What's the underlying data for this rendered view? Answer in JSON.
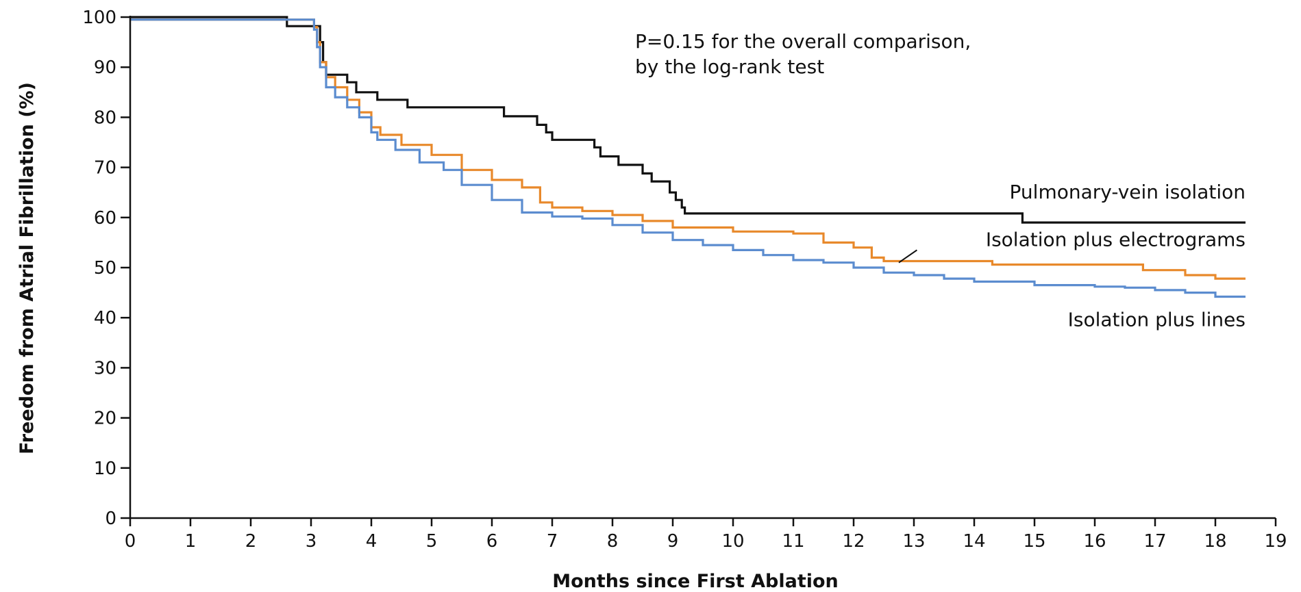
{
  "chart_data": {
    "type": "line",
    "xlabel": "Months since First Ablation",
    "ylabel": "Freedom from Atrial Fibrillation (%)",
    "xlim": [
      0,
      19
    ],
    "ylim": [
      0,
      100
    ],
    "xticks": [
      0,
      1,
      2,
      3,
      4,
      5,
      6,
      7,
      8,
      9,
      10,
      11,
      12,
      13,
      14,
      15,
      16,
      17,
      18,
      19
    ],
    "yticks": [
      0,
      10,
      20,
      30,
      40,
      50,
      60,
      70,
      80,
      90,
      100
    ],
    "grid": false,
    "annotation": {
      "line1": "P=0.15 for the overall comparison,",
      "line2": "by the log-rank test"
    },
    "series": [
      {
        "name": "Pulmonary-vein isolation",
        "color": "#111111",
        "step": true,
        "points": [
          [
            0,
            100
          ],
          [
            2.6,
            100
          ],
          [
            2.6,
            98.2
          ],
          [
            2.95,
            98.2
          ],
          [
            3.05,
            98.2
          ],
          [
            3.15,
            95
          ],
          [
            3.2,
            91
          ],
          [
            3.25,
            88.5
          ],
          [
            3.6,
            88.5
          ],
          [
            3.6,
            87
          ],
          [
            3.75,
            87
          ],
          [
            3.75,
            85
          ],
          [
            4.1,
            85
          ],
          [
            4.1,
            83.5
          ],
          [
            4.6,
            83.5
          ],
          [
            4.6,
            82
          ],
          [
            6.2,
            82
          ],
          [
            6.2,
            80.2
          ],
          [
            6.75,
            80.2
          ],
          [
            6.75,
            78.5
          ],
          [
            6.9,
            78.5
          ],
          [
            6.9,
            77
          ],
          [
            7.0,
            77
          ],
          [
            7.0,
            75.5
          ],
          [
            7.7,
            75.5
          ],
          [
            7.7,
            74
          ],
          [
            7.8,
            74
          ],
          [
            7.8,
            72.2
          ],
          [
            8.1,
            72.2
          ],
          [
            8.1,
            70.5
          ],
          [
            8.5,
            70.5
          ],
          [
            8.5,
            68.8
          ],
          [
            8.65,
            68.8
          ],
          [
            8.65,
            67.2
          ],
          [
            8.95,
            67.2
          ],
          [
            8.95,
            65
          ],
          [
            9.05,
            65
          ],
          [
            9.05,
            63.5
          ],
          [
            9.15,
            63.5
          ],
          [
            9.15,
            62
          ],
          [
            9.2,
            62
          ],
          [
            9.2,
            60.8
          ],
          [
            14.8,
            60.8
          ],
          [
            14.8,
            59
          ],
          [
            18.5,
            59
          ]
        ]
      },
      {
        "name": "Isolation plus electrograms",
        "color": "#e8892b",
        "step": true,
        "points": [
          [
            0,
            99.5
          ],
          [
            2.95,
            99.5
          ],
          [
            3.05,
            98
          ],
          [
            3.1,
            95
          ],
          [
            3.15,
            91
          ],
          [
            3.25,
            88
          ],
          [
            3.4,
            86
          ],
          [
            3.6,
            83.5
          ],
          [
            3.8,
            81
          ],
          [
            4.0,
            78
          ],
          [
            4.15,
            76.5
          ],
          [
            4.5,
            74.5
          ],
          [
            5.0,
            72.5
          ],
          [
            5.5,
            69.5
          ],
          [
            6.0,
            67.5
          ],
          [
            6.5,
            66
          ],
          [
            6.8,
            63
          ],
          [
            7.0,
            62
          ],
          [
            7.5,
            61.3
          ],
          [
            8.0,
            60.5
          ],
          [
            8.5,
            59.3
          ],
          [
            9.0,
            58
          ],
          [
            9.5,
            58
          ],
          [
            10.0,
            57.2
          ],
          [
            11.0,
            57.2
          ],
          [
            11.0,
            56.8
          ],
          [
            11.5,
            56.8
          ],
          [
            11.5,
            55
          ],
          [
            12.0,
            54
          ],
          [
            12.3,
            52
          ],
          [
            12.5,
            51.3
          ],
          [
            14.3,
            51.3
          ],
          [
            14.3,
            50.6
          ],
          [
            16.8,
            50.6
          ],
          [
            16.8,
            49.5
          ],
          [
            17.5,
            48.5
          ],
          [
            18.0,
            47.8
          ],
          [
            18.5,
            47.8
          ]
        ]
      },
      {
        "name": "Isolation plus lines",
        "color": "#5b8ccf",
        "step": true,
        "points": [
          [
            0,
            99.5
          ],
          [
            2.95,
            99.5
          ],
          [
            3.05,
            97.5
          ],
          [
            3.1,
            94
          ],
          [
            3.15,
            90
          ],
          [
            3.25,
            86
          ],
          [
            3.4,
            84
          ],
          [
            3.6,
            82
          ],
          [
            3.8,
            80
          ],
          [
            4.0,
            77
          ],
          [
            4.1,
            75.5
          ],
          [
            4.4,
            73.5
          ],
          [
            4.8,
            71
          ],
          [
            5.2,
            69.5
          ],
          [
            5.5,
            66.5
          ],
          [
            6.0,
            63.5
          ],
          [
            6.5,
            61
          ],
          [
            7.0,
            60.2
          ],
          [
            7.5,
            59.8
          ],
          [
            8.0,
            58.5
          ],
          [
            8.5,
            57
          ],
          [
            9.0,
            55.5
          ],
          [
            9.5,
            54.5
          ],
          [
            10.0,
            53.5
          ],
          [
            10.5,
            52.5
          ],
          [
            11.0,
            51.5
          ],
          [
            11.5,
            51
          ],
          [
            12.0,
            50
          ],
          [
            12.5,
            49
          ],
          [
            13.0,
            48.5
          ],
          [
            13.5,
            47.8
          ],
          [
            14.0,
            47.2
          ],
          [
            15.0,
            46.5
          ],
          [
            16.0,
            46.2
          ],
          [
            16.5,
            46
          ],
          [
            17.0,
            45.5
          ],
          [
            17.5,
            45
          ],
          [
            18.0,
            44.2
          ],
          [
            18.5,
            44.2
          ]
        ]
      }
    ],
    "series_labels": [
      {
        "text": "Pulmonary-vein isolation",
        "anchor_x": 18.5,
        "anchor_y": 63.8
      },
      {
        "text": "Isolation plus electrograms",
        "anchor_x": 18.5,
        "anchor_y": 54.3
      },
      {
        "text": "Isolation plus lines",
        "anchor_x": 18.5,
        "anchor_y": 38.3
      }
    ]
  }
}
